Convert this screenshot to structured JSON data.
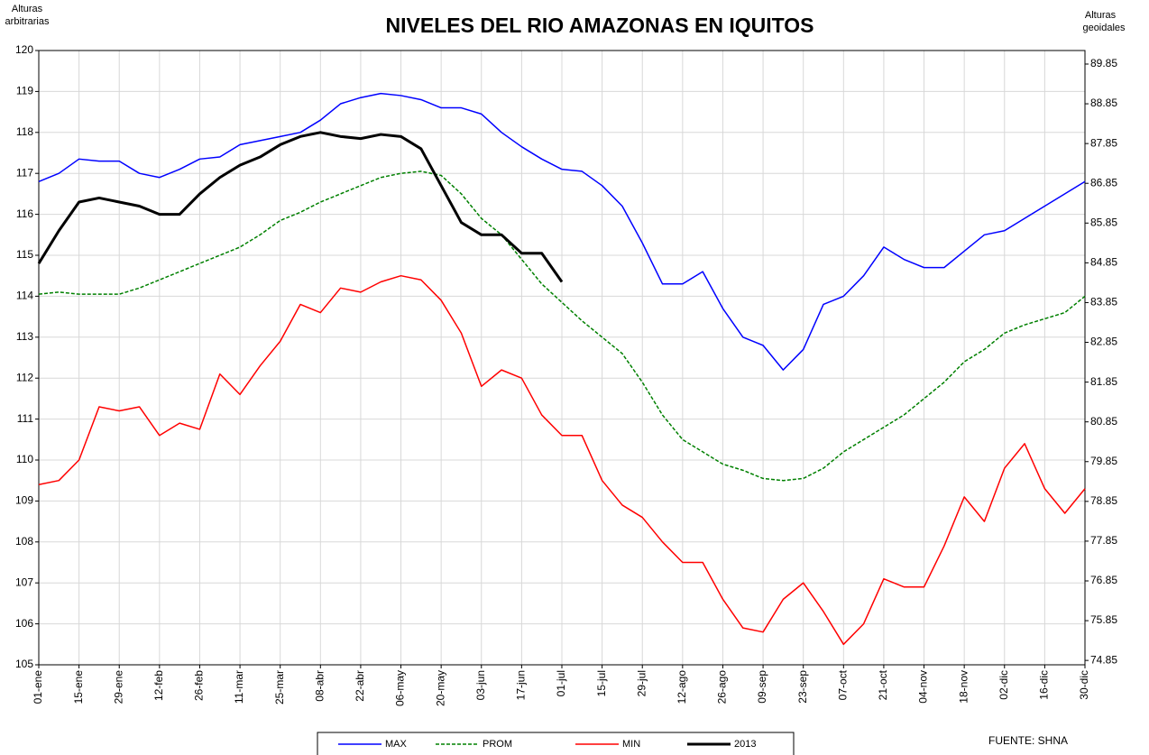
{
  "chart_data": {
    "type": "line",
    "title": "NIVELES DEL RIO AMAZONAS EN IQUITOS",
    "y_label": [
      "Alturas",
      "arbitrarias"
    ],
    "y2_label": [
      "Alturas",
      "geoidales"
    ],
    "source": "FUENTE: SHNA",
    "x": [
      1,
      8,
      15,
      22,
      29,
      36,
      43,
      50,
      57,
      64,
      71,
      78,
      85,
      92,
      99,
      106,
      113,
      120,
      127,
      134,
      141,
      148,
      155,
      162,
      169,
      176,
      183,
      190,
      197,
      204,
      211,
      218,
      225,
      232,
      239,
      246,
      253,
      260,
      267,
      274,
      281,
      288,
      295,
      302,
      309,
      316,
      323,
      330,
      337,
      344,
      351,
      358,
      365
    ],
    "xlim": [
      1,
      365
    ],
    "xticks": [
      {
        "value": 1,
        "label": "01-ene"
      },
      {
        "value": 15,
        "label": "15-ene"
      },
      {
        "value": 29,
        "label": "29-ene"
      },
      {
        "value": 43,
        "label": "12-feb"
      },
      {
        "value": 57,
        "label": "26-feb"
      },
      {
        "value": 71,
        "label": "11-mar"
      },
      {
        "value": 85,
        "label": "25-mar"
      },
      {
        "value": 99,
        "label": "08-abr"
      },
      {
        "value": 113,
        "label": "22-abr"
      },
      {
        "value": 127,
        "label": "06-may"
      },
      {
        "value": 141,
        "label": "20-may"
      },
      {
        "value": 155,
        "label": "03-jun"
      },
      {
        "value": 169,
        "label": "17-jun"
      },
      {
        "value": 183,
        "label": "01-jul"
      },
      {
        "value": 197,
        "label": "15-jul"
      },
      {
        "value": 211,
        "label": "29-jul"
      },
      {
        "value": 225,
        "label": "12-ago"
      },
      {
        "value": 239,
        "label": "26-ago"
      },
      {
        "value": 253,
        "label": "09-sep"
      },
      {
        "value": 267,
        "label": "23-sep"
      },
      {
        "value": 281,
        "label": "07-oct"
      },
      {
        "value": 295,
        "label": "21-oct"
      },
      {
        "value": 309,
        "label": "04-nov"
      },
      {
        "value": 323,
        "label": "18-nov"
      },
      {
        "value": 337,
        "label": "02-dic"
      },
      {
        "value": 351,
        "label": "16-dic"
      },
      {
        "value": 365,
        "label": "30-dic"
      }
    ],
    "ylim": [
      105,
      120
    ],
    "yticks": [
      105,
      106,
      107,
      108,
      109,
      110,
      111,
      112,
      113,
      114,
      115,
      116,
      117,
      118,
      119,
      120
    ],
    "y2lim": [
      74.74,
      90.19
    ],
    "y2ticks": [
      74.85,
      75.85,
      76.85,
      77.85,
      78.85,
      79.85,
      80.85,
      81.85,
      82.85,
      83.85,
      84.85,
      85.85,
      86.85,
      87.85,
      88.85,
      89.85
    ],
    "grid": true,
    "legend": "bottom",
    "series": [
      {
        "name": "MAX",
        "color": "#0000ff",
        "dashed": false,
        "line_width": 1.5,
        "values": [
          116.8,
          117.0,
          117.35,
          117.3,
          117.3,
          117.0,
          116.9,
          117.1,
          117.35,
          117.4,
          117.7,
          117.8,
          117.9,
          118.0,
          118.3,
          118.7,
          118.85,
          118.95,
          118.9,
          118.8,
          118.6,
          118.6,
          118.45,
          118.0,
          117.65,
          117.35,
          117.1,
          117.05,
          116.7,
          116.2,
          115.3,
          114.3,
          114.3,
          114.6,
          113.7,
          113.0,
          112.8,
          112.2,
          112.7,
          113.8,
          114.0,
          114.5,
          115.2,
          114.9,
          114.7,
          114.7,
          115.1,
          115.5,
          115.6,
          115.9,
          116.2,
          116.5,
          116.8
        ]
      },
      {
        "name": "PROM",
        "color": "#008000",
        "dashed": true,
        "line_width": 1.5,
        "values": [
          114.05,
          114.1,
          114.05,
          114.05,
          114.05,
          114.2,
          114.4,
          114.6,
          114.8,
          115.0,
          115.2,
          115.5,
          115.85,
          116.05,
          116.3,
          116.5,
          116.7,
          116.9,
          117.0,
          117.05,
          116.95,
          116.5,
          115.9,
          115.5,
          114.9,
          114.3,
          113.85,
          113.4,
          113.0,
          112.6,
          111.9,
          111.1,
          110.5,
          110.2,
          109.9,
          109.75,
          109.55,
          109.5,
          109.55,
          109.8,
          110.2,
          110.5,
          110.8,
          111.1,
          111.5,
          111.9,
          112.4,
          112.7,
          113.1,
          113.3,
          113.45,
          113.6,
          114.0
        ]
      },
      {
        "name": "MIN",
        "color": "#ff0000",
        "dashed": false,
        "line_width": 1.5,
        "values": [
          109.4,
          109.5,
          110.0,
          111.3,
          111.2,
          111.3,
          110.6,
          110.9,
          110.75,
          112.1,
          111.6,
          112.3,
          112.9,
          113.8,
          113.6,
          114.2,
          114.1,
          114.35,
          114.5,
          114.4,
          113.9,
          113.1,
          111.8,
          112.2,
          112.0,
          111.1,
          110.6,
          110.6,
          109.5,
          108.9,
          108.6,
          108.0,
          107.5,
          107.5,
          106.6,
          105.9,
          105.8,
          106.6,
          107.0,
          106.3,
          105.5,
          106.0,
          107.1,
          106.9,
          106.9,
          107.9,
          109.1,
          108.5,
          109.8,
          110.4,
          109.3,
          108.7,
          109.3
        ]
      },
      {
        "name": "2013",
        "color": "#000000",
        "dashed": false,
        "line_width": 3,
        "values": [
          114.8,
          115.6,
          116.3,
          116.4,
          116.3,
          116.2,
          116.0,
          116.0,
          116.5,
          116.9,
          117.2,
          117.4,
          117.7,
          117.9,
          118.0,
          117.9,
          117.85,
          117.95,
          117.9,
          117.6,
          116.7,
          115.8,
          115.5,
          115.5,
          115.05,
          115.05,
          114.35,
          null,
          null,
          null,
          null,
          null,
          null,
          null,
          null,
          null,
          null,
          null,
          null,
          null,
          null,
          null,
          null,
          null,
          null,
          null,
          null,
          null,
          null,
          null,
          null,
          null,
          null
        ]
      }
    ]
  }
}
